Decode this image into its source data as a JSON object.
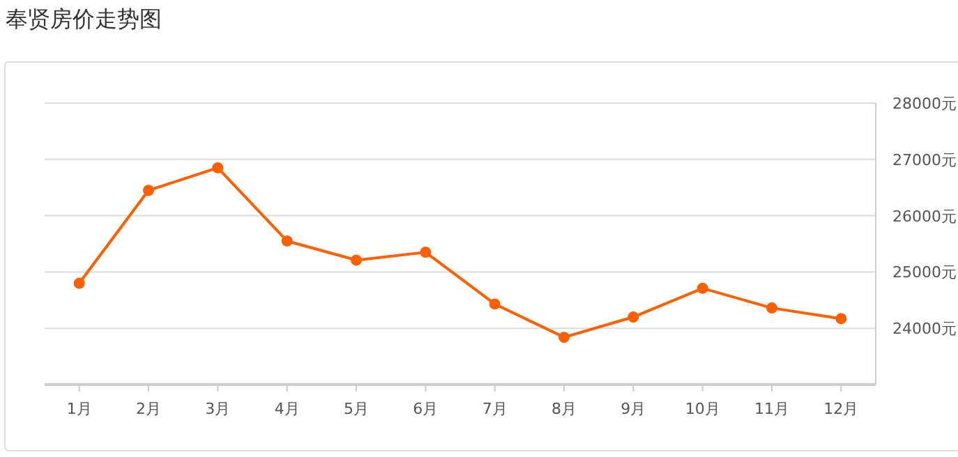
{
  "chart_data": {
    "type": "line",
    "title": "奉贤房价走势图",
    "categories": [
      "1月",
      "2月",
      "3月",
      "4月",
      "5月",
      "6月",
      "7月",
      "8月",
      "9月",
      "10月",
      "11月",
      "12月"
    ],
    "series": [
      {
        "color": "#ff5f00",
        "values": [
          24800,
          26450,
          26850,
          25550,
          25210,
          25350,
          24430,
          23840,
          24200,
          24710,
          24360,
          24170
        ]
      }
    ],
    "ylim": [
      23000,
      28000
    ],
    "yticks": [
      {
        "value": 24000,
        "label": "24000元"
      },
      {
        "value": 25000,
        "label": "25000元"
      },
      {
        "value": 26000,
        "label": "26000元"
      },
      {
        "value": 27000,
        "label": "27000元"
      },
      {
        "value": 28000,
        "label": "28000元"
      }
    ],
    "grid": "y",
    "marker": "circle",
    "line_style": "solid"
  }
}
